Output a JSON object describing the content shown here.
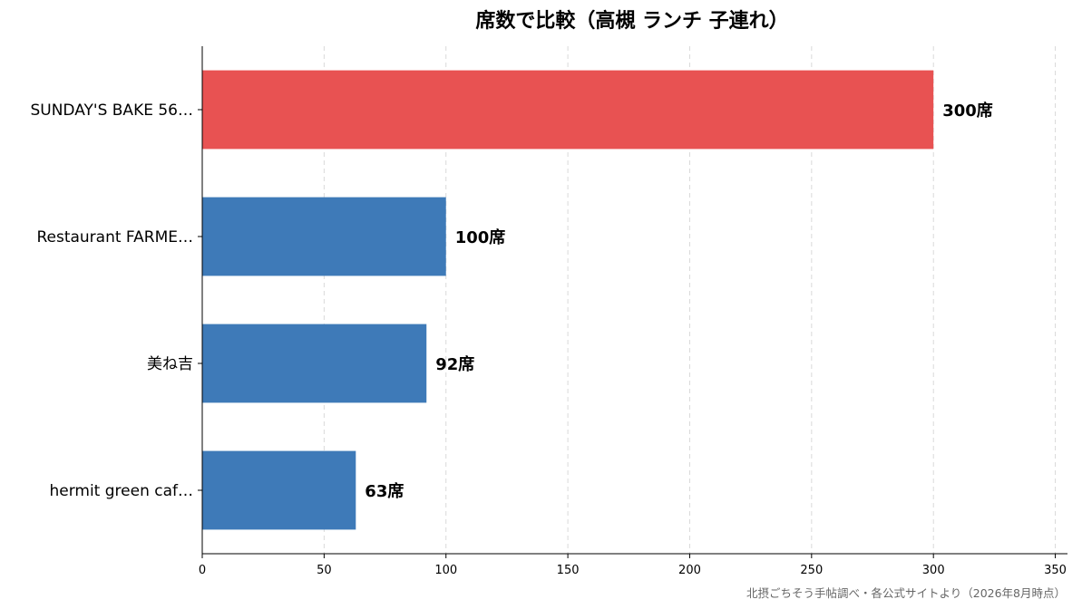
{
  "chart_data": {
    "type": "bar",
    "orientation": "horizontal",
    "title": "席数で比較（高槻 ランチ 子連れ）",
    "categories": [
      "SUNDAY'S BAKE 56…",
      "Restaurant FARME…",
      "美ね吉",
      "hermit green caf…"
    ],
    "values": [
      300,
      100,
      92,
      63
    ],
    "value_labels": [
      "300席",
      "100席",
      "92席",
      "63席"
    ],
    "bar_colors": [
      "#e85252",
      "#3e7ab8",
      "#3e7ab8",
      "#3e7ab8"
    ],
    "xlim": [
      0,
      355
    ],
    "xticks": [
      0,
      50,
      100,
      150,
      200,
      250,
      300,
      350
    ],
    "xtick_labels": [
      "0",
      "50",
      "100",
      "150",
      "200",
      "250",
      "300",
      "350"
    ],
    "grid": "x-dashed",
    "source_note": "北摂ごちそう手帖調べ・各公式サイトより（2026年8月時点）"
  }
}
